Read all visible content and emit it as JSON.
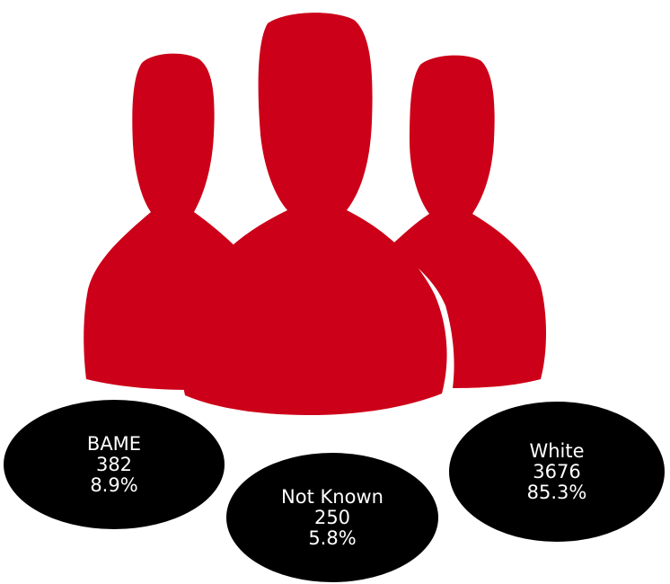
{
  "colors": {
    "figure": "#cc0018",
    "bubble": "#000000",
    "bubble_text": "#ffffff",
    "background": "#ffffff"
  },
  "icon": "group-of-people-icon",
  "chart_data": {
    "type": "bubble",
    "groups": [
      {
        "label": "BAME",
        "count": "382",
        "percent": "8.9%"
      },
      {
        "label": "Not Known",
        "count": "250",
        "percent": "5.8%"
      },
      {
        "label": "White",
        "count": "3676",
        "percent": "85.3%"
      }
    ]
  }
}
